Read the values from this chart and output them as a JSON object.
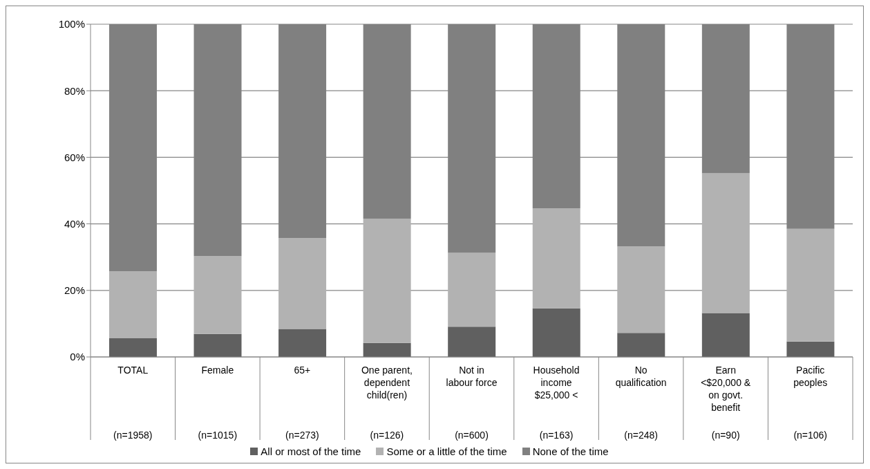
{
  "chart_data": {
    "type": "bar",
    "stacked": true,
    "categories": [
      "TOTAL\n(n=1958)",
      "Female\n(n=1015)",
      "65+\n(n=273)",
      "One parent,\ndependent\nchild(ren)\n(n=126)",
      "Not in\nlabour force\n(n=600)",
      "Household\nincome\n$25,000 <\n(n=163)",
      "No\nqualification\n(n=248)",
      "Earn\n<$20,000 &\non govt.\nbenefit\n(n=90)",
      "Pacific\npeoples\n(n=106)"
    ],
    "series": [
      {
        "name": "All or most of the time",
        "color": "#606060",
        "values": [
          5.6,
          6.9,
          8.4,
          4.2,
          9.1,
          14.6,
          7.2,
          13.2,
          4.6
        ]
      },
      {
        "name": "Some or a little of the time",
        "color": "#b2b2b2",
        "values": [
          20.2,
          23.4,
          27.3,
          37.4,
          22.2,
          30.1,
          26.0,
          42.0,
          33.9
        ]
      },
      {
        "name": "None of the time",
        "color": "#808080",
        "values": [
          74.2,
          69.7,
          64.3,
          58.4,
          68.7,
          55.3,
          66.8,
          44.8,
          61.5
        ]
      }
    ],
    "ylim": [
      0,
      100
    ],
    "yticks": [
      {
        "value": 0,
        "label": "0%"
      },
      {
        "value": 20,
        "label": "20%"
      },
      {
        "value": 40,
        "label": "40%"
      },
      {
        "value": 60,
        "label": "60%"
      },
      {
        "value": 80,
        "label": "80%"
      },
      {
        "value": 100,
        "label": "100%"
      }
    ],
    "grid": "y",
    "legend": "bottom"
  }
}
